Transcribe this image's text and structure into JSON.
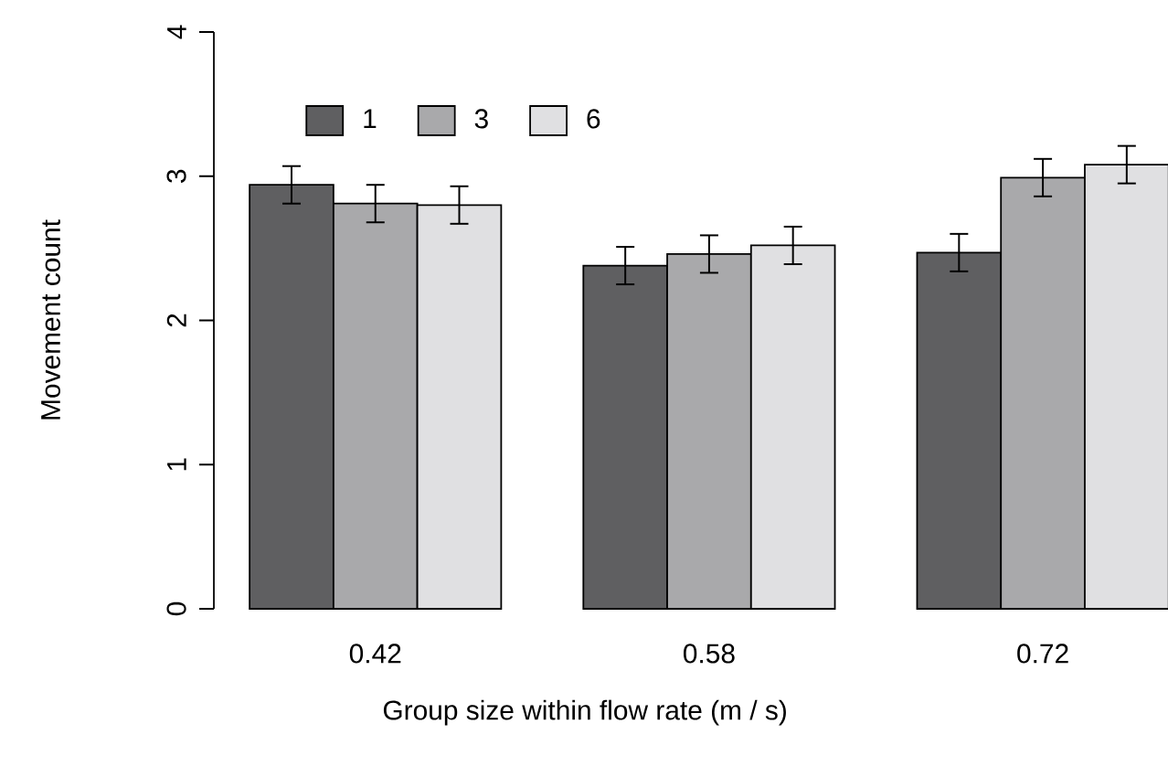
{
  "chart_data": {
    "type": "bar",
    "xlabel": "Group size within flow rate (m / s)",
    "ylabel": "Movement count",
    "categories": [
      "0.42",
      "0.58",
      "0.72"
    ],
    "series": [
      {
        "name": "1",
        "color": "#5f5f61",
        "values": [
          2.94,
          2.38,
          2.47
        ],
        "errors": [
          0.13,
          0.13,
          0.13
        ]
      },
      {
        "name": "3",
        "color": "#a9a9ab",
        "values": [
          2.81,
          2.46,
          2.99
        ],
        "errors": [
          0.13,
          0.13,
          0.13
        ]
      },
      {
        "name": "6",
        "color": "#e0e0e2",
        "values": [
          2.8,
          2.52,
          3.08
        ],
        "errors": [
          0.13,
          0.13,
          0.13
        ]
      }
    ],
    "ylim": [
      0,
      4
    ],
    "yticks": [
      0,
      1,
      2,
      3,
      4
    ],
    "legend": "top left",
    "grid": false
  }
}
